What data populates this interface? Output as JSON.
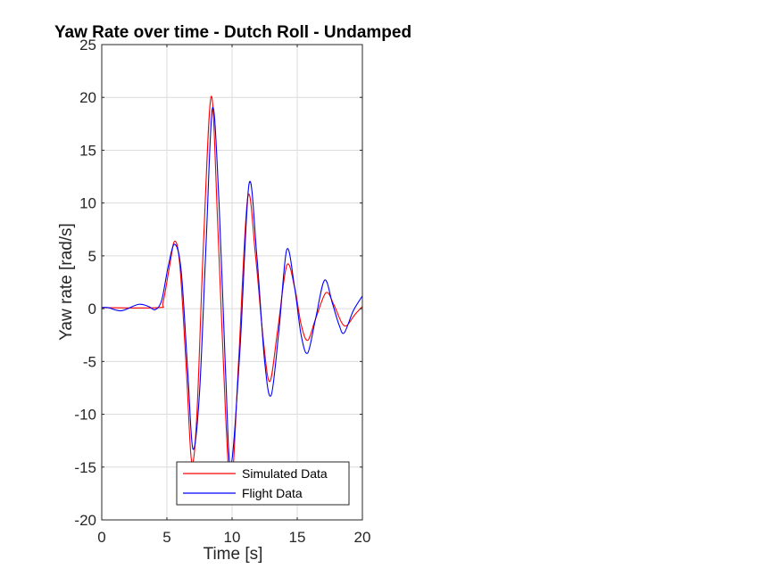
{
  "chart_data": {
    "type": "line",
    "title": "Yaw Rate over time - Dutch Roll - Undamped",
    "xlabel": "Time [s]",
    "ylabel": "Yaw rate [rad/s]",
    "xlim": [
      0,
      20
    ],
    "ylim": [
      -20,
      25
    ],
    "xticks": [
      0,
      5,
      10,
      15,
      20
    ],
    "yticks": [
      -20,
      -15,
      -10,
      -5,
      0,
      5,
      10,
      15,
      20,
      25
    ],
    "xtick_labels": [
      "0",
      "5",
      "10",
      "15",
      "20"
    ],
    "ytick_labels": [
      "-20",
      "-15",
      "-10",
      "-5",
      "0",
      "5",
      "10",
      "15",
      "20",
      "25"
    ],
    "grid": true,
    "legend_position": "bottom-right",
    "series": [
      {
        "name": "Simulated Data",
        "color": "#ff0000",
        "points": [
          [
            0,
            0.1
          ],
          [
            4.3,
            0.1
          ],
          [
            4.7,
            0.6
          ],
          [
            5.2,
            4.0
          ],
          [
            5.6,
            6.4
          ],
          [
            6.0,
            4.0
          ],
          [
            6.5,
            -6.0
          ],
          [
            6.9,
            -14.5
          ],
          [
            7.3,
            -10.0
          ],
          [
            7.8,
            6.0
          ],
          [
            8.4,
            20.1
          ],
          [
            8.9,
            8.0
          ],
          [
            9.5,
            -10.0
          ],
          [
            9.95,
            -17.0
          ],
          [
            10.5,
            -5.0
          ],
          [
            11.2,
            10.5
          ],
          [
            11.8,
            5.0
          ],
          [
            12.4,
            -3.0
          ],
          [
            12.9,
            -6.9
          ],
          [
            13.5,
            -2.0
          ],
          [
            14.2,
            4.1
          ],
          [
            14.8,
            2.0
          ],
          [
            15.3,
            -1.5
          ],
          [
            15.8,
            -3.0
          ],
          [
            16.4,
            -1.0
          ],
          [
            17.2,
            1.5
          ],
          [
            17.8,
            0.4
          ],
          [
            18.4,
            -1.3
          ],
          [
            18.8,
            -1.6
          ],
          [
            19.4,
            -0.6
          ],
          [
            20.0,
            0.2
          ]
        ]
      },
      {
        "name": "Flight Data",
        "color": "#0000ff",
        "points": [
          [
            0,
            0.1
          ],
          [
            0.5,
            0.1
          ],
          [
            1.5,
            -0.2
          ],
          [
            2.8,
            0.4
          ],
          [
            3.6,
            0.2
          ],
          [
            4.1,
            -0.1
          ],
          [
            4.6,
            0.8
          ],
          [
            5.1,
            4.0
          ],
          [
            5.6,
            6.1
          ],
          [
            6.1,
            3.5
          ],
          [
            6.6,
            -6.0
          ],
          [
            7.0,
            -13.3
          ],
          [
            7.5,
            -8.0
          ],
          [
            8.0,
            6.0
          ],
          [
            8.5,
            19.0
          ],
          [
            9.0,
            10.0
          ],
          [
            9.5,
            -6.0
          ],
          [
            9.9,
            -14.9
          ],
          [
            10.6,
            -4.0
          ],
          [
            11.3,
            11.8
          ],
          [
            11.9,
            5.0
          ],
          [
            12.5,
            -5.0
          ],
          [
            13.0,
            -8.2
          ],
          [
            13.6,
            -2.0
          ],
          [
            14.2,
            5.6
          ],
          [
            14.8,
            2.0
          ],
          [
            15.3,
            -2.5
          ],
          [
            15.8,
            -4.2
          ],
          [
            16.4,
            -1.0
          ],
          [
            17.1,
            2.7
          ],
          [
            17.7,
            0.5
          ],
          [
            18.2,
            -1.5
          ],
          [
            18.6,
            -2.3
          ],
          [
            19.3,
            -0.2
          ],
          [
            20.0,
            1.2
          ]
        ]
      }
    ]
  }
}
